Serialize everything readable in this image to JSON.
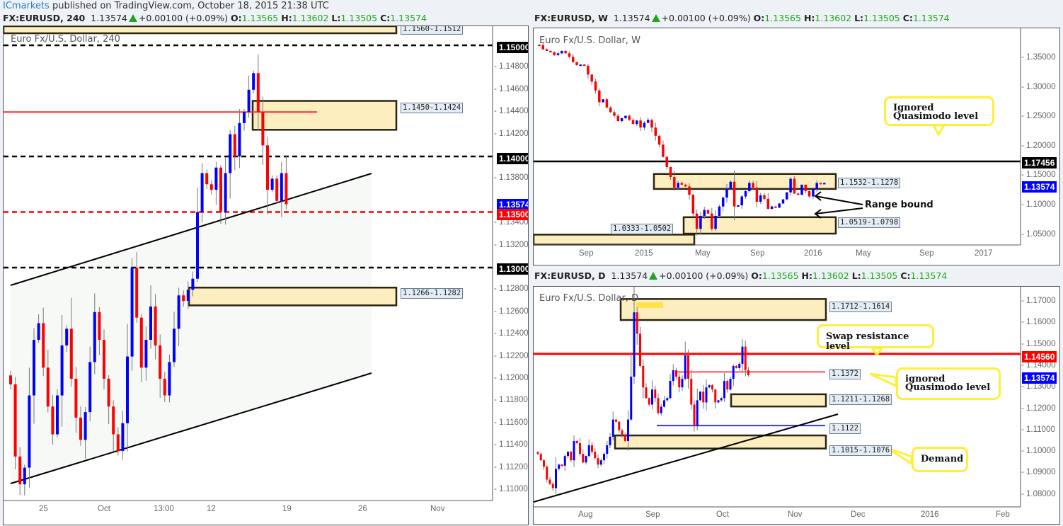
{
  "publish_bar": {
    "author": "ICmarkets",
    "text": " published on TradingView.com, October 18, 2015 21:38 UTC"
  },
  "colors": {
    "up_candle": "#0000ff",
    "down_candle": "#ff0000",
    "zone_fill": "#fdeebf",
    "zone_border": "#2a2410",
    "callout_border": "#ffef3a",
    "price_tag_current": "#0000ff",
    "price_tag_red": "#ff0000",
    "price_tag_black": "#000000",
    "positive": "#1ea51e"
  },
  "charts": {
    "h4": {
      "header": {
        "symbol": "FX:EURUSD, 240",
        "last": "1.13574",
        "change": "+0.00100 (+0.09%)",
        "o": "1.13565",
        "h": "1.13602",
        "l": "1.13505",
        "c": "1.13574"
      },
      "title": "Euro Fx/U.S. Dollar, 240",
      "y_ticks": [
        "1.14800",
        "1.14600",
        "1.14400",
        "1.14200",
        "1.13800",
        "1.13400",
        "1.13200",
        "1.12800",
        "1.12600",
        "1.12400",
        "1.12200",
        "1.12000",
        "1.11800",
        "1.11600",
        "1.11400",
        "1.11200",
        "1.11000"
      ],
      "x_ticks": [
        "25",
        "Oct",
        "13:00",
        "12",
        "19",
        "26",
        "Nov"
      ],
      "price_tags": {
        "p150": "1.15000",
        "p140": "1.14000",
        "p1357": "1.13574",
        "p135": "1.13500",
        "p130": "1.13000"
      },
      "zone_labels": {
        "top": "1.1560-1.1512",
        "z1450": "1.1450-1.1424",
        "z1266": "1.1266-1.1282"
      }
    },
    "weekly": {
      "header": {
        "symbol": "FX:EURUSD, W",
        "last": "1.13574",
        "change": "+0.00100 (+0.09%)",
        "o": "1.13565",
        "h": "1.13602",
        "l": "1.13505",
        "c": "1.13574"
      },
      "title": "Euro Fx/U.S. Dollar, W",
      "y_ticks": [
        "1.35000",
        "1.30000",
        "1.25000",
        "1.20000",
        "1.15000",
        "1.10000",
        "1.05000"
      ],
      "x_ticks": [
        "Sep",
        "2015",
        "May",
        "Sep",
        "2016",
        "May",
        "Sep",
        "2017"
      ],
      "price_tags": {
        "p17456": "1.17456",
        "p1357": "1.13574"
      },
      "zone_labels": {
        "z1532": "1.1532-1.1278",
        "z0519": "1.0519-1.0798",
        "z0333": "1.0333-1.0502"
      },
      "callout": "Ignored Quasimodo level",
      "note": "Range bound"
    },
    "daily": {
      "header": {
        "symbol": "FX:EURUSD, D",
        "last": "1.13574",
        "change": "+0.00100 (+0.09%)",
        "o": "1.13565",
        "h": "1.13602",
        "l": "1.13505",
        "c": "1.13574"
      },
      "title": "Euro Fx/U.S. Dollar, D",
      "y_ticks": [
        "1.17000",
        "1.16000",
        "1.15000",
        "1.14000",
        "1.13000",
        "1.12000",
        "1.11000",
        "1.10000",
        "1.09000",
        "1.08000"
      ],
      "x_ticks": [
        "Aug",
        "Sep",
        "Oct",
        "Nov",
        "Dec",
        "2016",
        "Feb"
      ],
      "price_tags": {
        "p1456": "1.14560",
        "p1357": "1.13574"
      },
      "zone_labels": {
        "z1712": "1.1712-1.1614",
        "l1372": "1.1372",
        "z1211": "1.1211-1.1268",
        "l1122": "1.1122",
        "z1015": "1.1015-1.1076"
      },
      "callouts": {
        "swap": "Swap resistance level",
        "iqm": "ignored Quasimodo level",
        "demand": "Demand"
      }
    }
  },
  "chart_data": [
    {
      "type": "candlestick",
      "title": "Euro Fx/U.S. Dollar, 240",
      "ylim": [
        1.1085,
        1.1515
      ],
      "xlabels": [
        "25",
        "Oct",
        "13:00",
        "12",
        "19",
        "26",
        "Nov"
      ],
      "horizontal_levels": [
        1.15,
        1.14,
        1.135,
        1.13,
        1.144
      ],
      "zones": [
        [
          1.1512,
          1.156
        ],
        [
          1.1424,
          1.145
        ],
        [
          1.1266,
          1.1282
        ]
      ],
      "last_price": 1.13574,
      "closes": [
        1.1195,
        1.113,
        1.1105,
        1.112,
        1.1185,
        1.1235,
        1.125,
        1.121,
        1.1175,
        1.115,
        1.1185,
        1.123,
        1.1245,
        1.12,
        1.1165,
        1.1145,
        1.117,
        1.1215,
        1.126,
        1.1235,
        1.12,
        1.1175,
        1.115,
        1.1135,
        1.116,
        1.122,
        1.13,
        1.1255,
        1.121,
        1.1235,
        1.1265,
        1.123,
        1.12,
        1.1185,
        1.1215,
        1.1245,
        1.1275,
        1.127,
        1.128,
        1.129,
        1.135,
        1.1385,
        1.1375,
        1.137,
        1.139,
        1.135,
        1.1385,
        1.142,
        1.14,
        1.143,
        1.144,
        1.146,
        1.1475,
        1.144,
        1.141,
        1.137,
        1.138,
        1.136,
        1.1385,
        1.1357
      ]
    },
    {
      "type": "candlestick",
      "title": "Euro Fx/U.S. Dollar, W",
      "ylim": [
        1.02,
        1.39
      ],
      "xlabels": [
        "Sep",
        "2015",
        "May",
        "Sep",
        "2016",
        "May",
        "Sep",
        "2017"
      ],
      "horizontal_levels": [
        1.17456
      ],
      "zones": [
        [
          1.1278,
          1.1532
        ],
        [
          1.0519,
          1.0798
        ],
        [
          1.0333,
          1.0502
        ]
      ],
      "annotations": [
        "Ignored Quasimodo level",
        "Range bound"
      ],
      "last_price": 1.13574
    },
    {
      "type": "candlestick",
      "title": "Euro Fx/U.S. Dollar, D",
      "ylim": [
        1.074,
        1.177
      ],
      "xlabels": [
        "Aug",
        "Sep",
        "Oct",
        "Nov",
        "Dec",
        "2016",
        "Feb"
      ],
      "horizontal_levels": [
        1.1456,
        1.1372,
        1.1122
      ],
      "zones": [
        [
          1.1614,
          1.1712
        ],
        [
          1.1211,
          1.1268
        ],
        [
          1.1015,
          1.1076
        ]
      ],
      "annotations": [
        "Swap resistance level",
        "ignored Quasimodo level",
        "Demand"
      ],
      "last_price": 1.13574
    }
  ]
}
